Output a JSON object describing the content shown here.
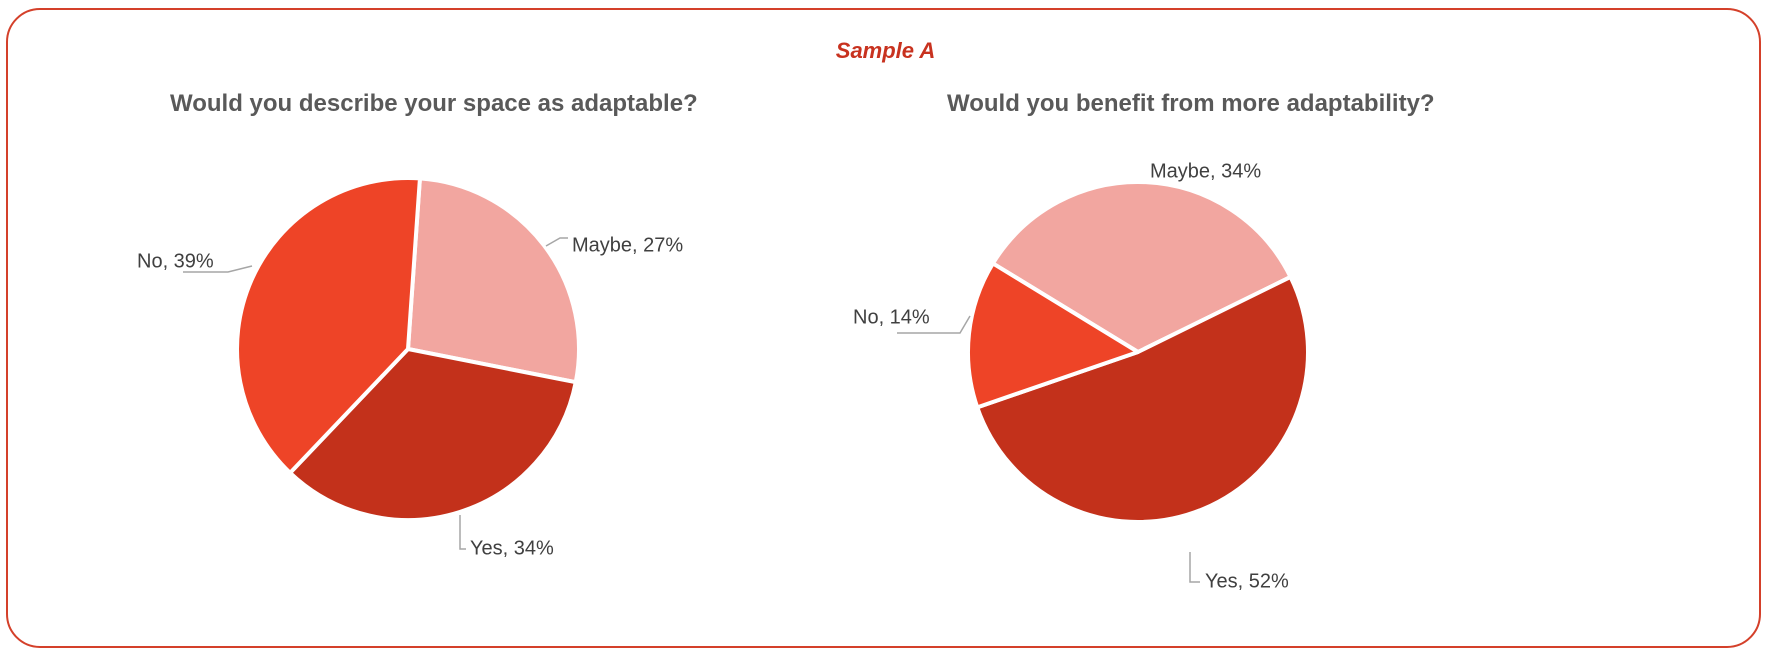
{
  "header": {
    "title": "Sample A"
  },
  "chart_data": [
    {
      "type": "pie",
      "title": "Would you describe your space as adaptable?",
      "slices": [
        {
          "label": "Maybe",
          "value": 27,
          "display": "Maybe, 27%",
          "color": "#f2a6a0"
        },
        {
          "label": "Yes",
          "value": 34,
          "display": "Yes, 34%",
          "color": "#c3311b"
        },
        {
          "label": "No",
          "value": 39,
          "display": "No, 39%",
          "color": "#ee4427"
        }
      ]
    },
    {
      "type": "pie",
      "title": "Would you benefit from more adaptability?",
      "slices": [
        {
          "label": "Maybe",
          "value": 34,
          "display": "Maybe, 34%",
          "color": "#f2a6a0"
        },
        {
          "label": "Yes",
          "value": 52,
          "display": "Yes, 52%",
          "color": "#c3311b"
        },
        {
          "label": "No",
          "value": 14,
          "display": "No, 14%",
          "color": "#ee4427"
        }
      ]
    }
  ]
}
